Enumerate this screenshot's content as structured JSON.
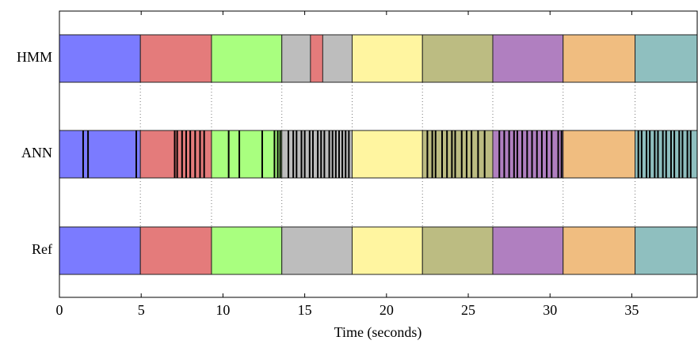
{
  "chart_data": {
    "type": "timeline",
    "xlabel": "Time (seconds)",
    "xlim": [
      0,
      39
    ],
    "xticks": [
      0,
      5,
      10,
      15,
      20,
      25,
      30,
      35
    ],
    "rows": [
      {
        "label": "HMM"
      },
      {
        "label": "ANN"
      },
      {
        "label": "Ref"
      }
    ],
    "boundaries": [
      0,
      4.95,
      9.3,
      13.6,
      17.9,
      22.2,
      26.5,
      30.8,
      35.2,
      39
    ],
    "colors": [
      "#7b7bff",
      "#e47b7b",
      "#a9ff7f",
      "#bdbdbd",
      "#fff5a0",
      "#bcbc82",
      "#b07fc0",
      "#f0bd80",
      "#8fbfbf"
    ],
    "hmm_insert": {
      "start": 15.35,
      "end": 16.1,
      "color": "#e47b7b"
    },
    "ann_switches": [
      1.45,
      1.75,
      4.7,
      7.05,
      7.2,
      7.5,
      7.75,
      8.0,
      8.3,
      8.6,
      8.85,
      10.35,
      11.0,
      12.4,
      13.15,
      13.35,
      13.5,
      14.0,
      14.3,
      14.5,
      14.8,
      15.0,
      15.3,
      15.5,
      15.8,
      16.0,
      16.2,
      16.5,
      16.7,
      16.9,
      17.1,
      17.3,
      17.5,
      17.7,
      22.5,
      22.8,
      23.0,
      23.4,
      23.7,
      24.0,
      24.2,
      24.6,
      24.9,
      25.2,
      25.6,
      26.0,
      26.9,
      27.2,
      27.5,
      27.8,
      28.0,
      28.3,
      28.6,
      28.9,
      29.2,
      29.5,
      29.8,
      30.1,
      30.5,
      30.7,
      35.4,
      35.6,
      35.9,
      36.1,
      36.4,
      36.6,
      36.9,
      37.1,
      37.4,
      37.6,
      37.9,
      38.1,
      38.4,
      38.6
    ]
  }
}
